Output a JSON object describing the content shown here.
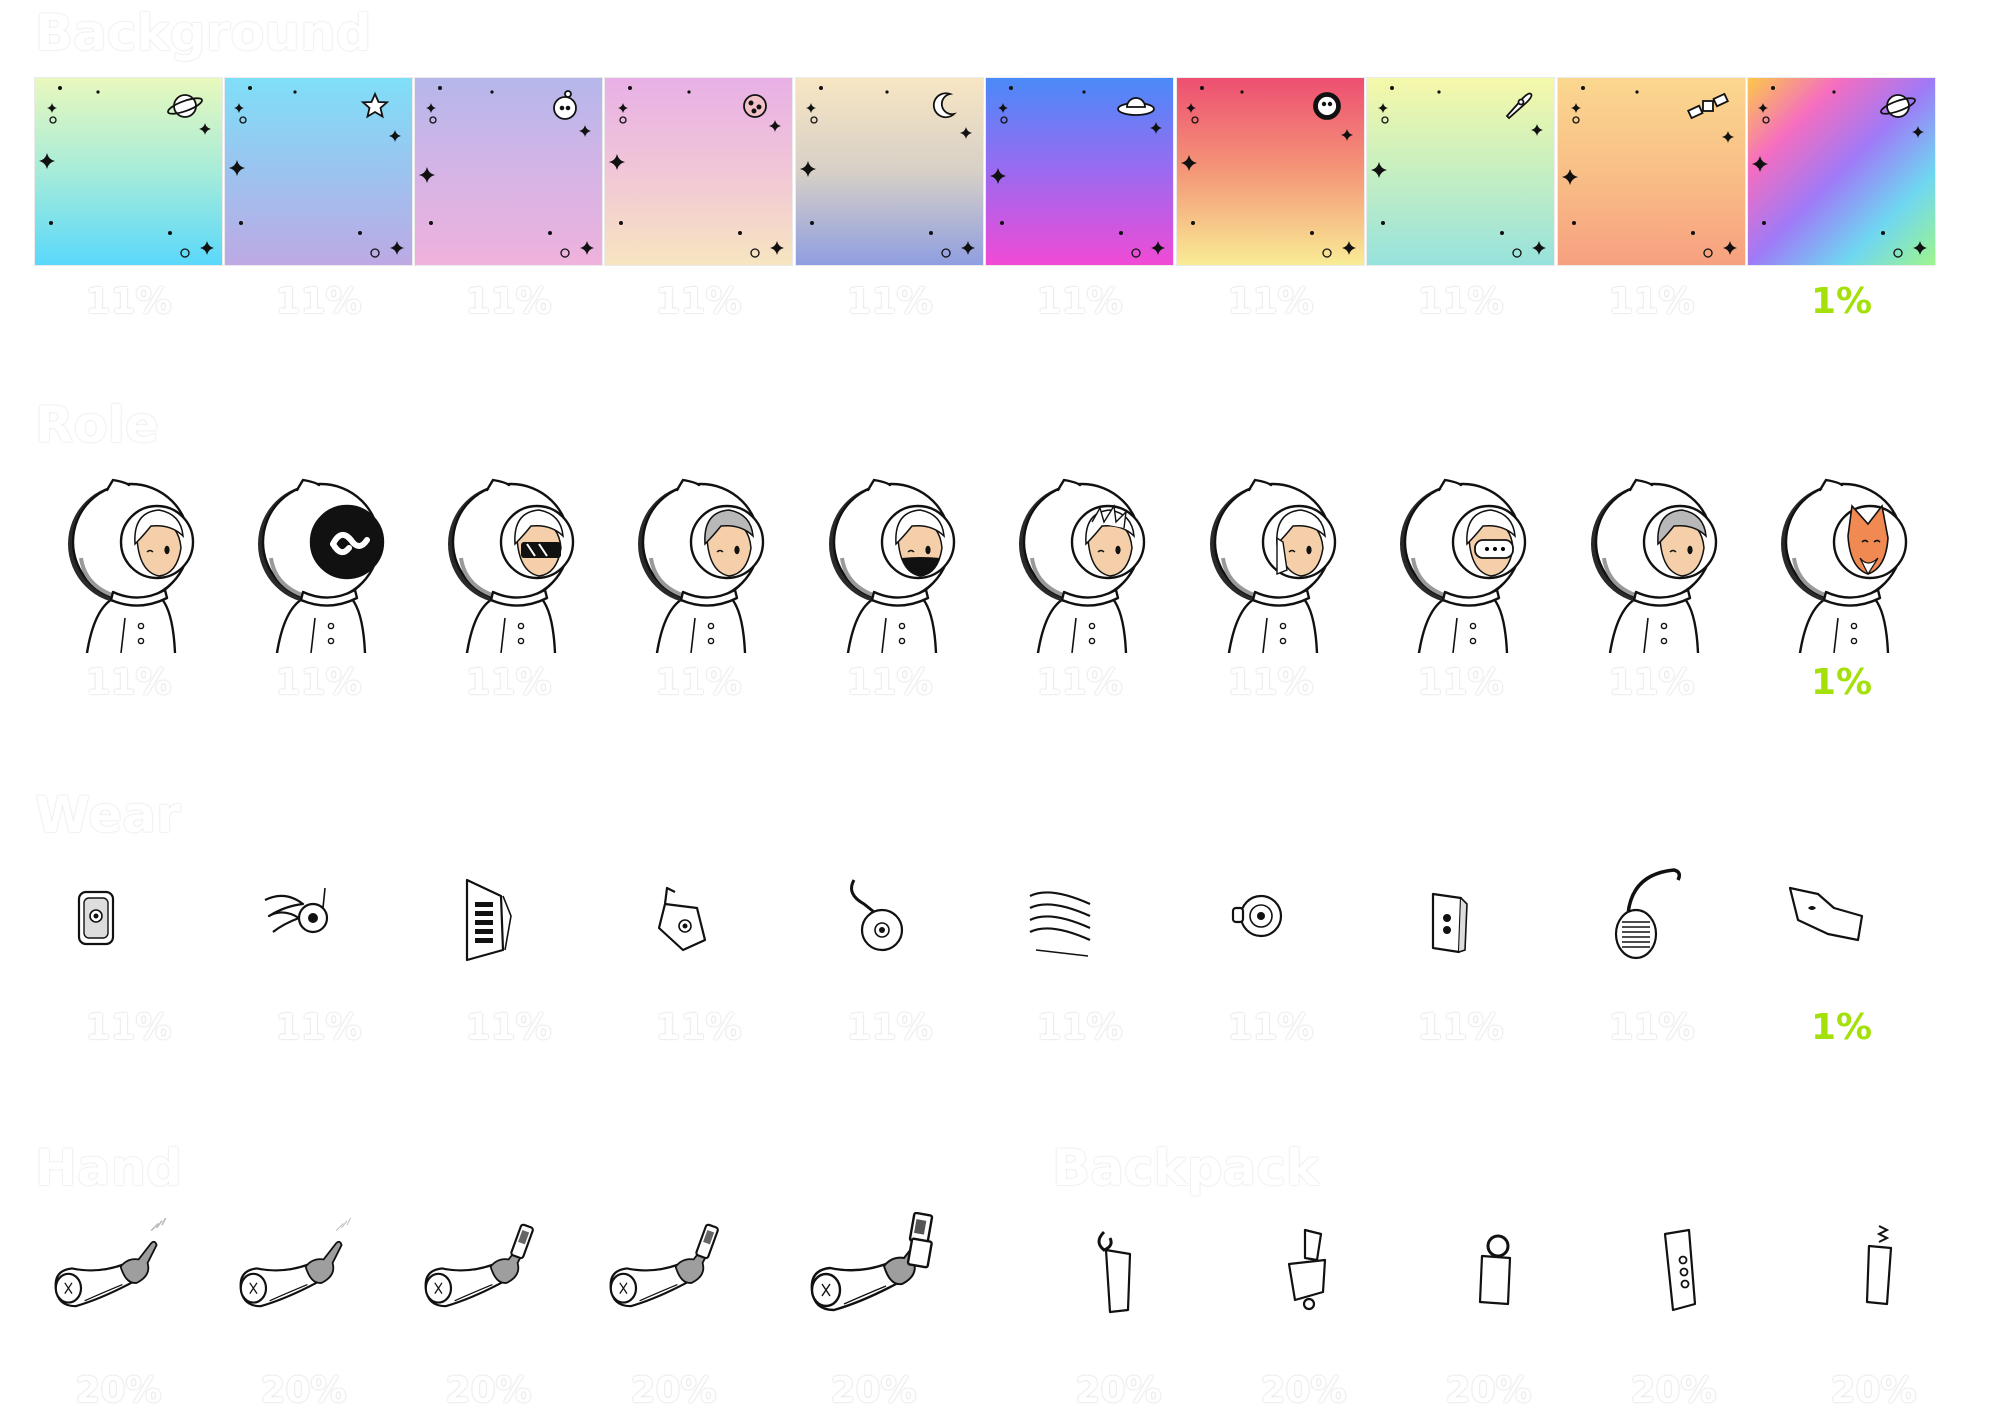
{
  "sections": {
    "background": {
      "title": "Background",
      "items": [
        {
          "name": "cyan-lime",
          "colors": [
            "#e9f8bd",
            "#a6ecd9",
            "#5ad8fb"
          ],
          "pct": "11%",
          "deco": "planet"
        },
        {
          "name": "sky-lavender",
          "colors": [
            "#7fdff8",
            "#9bc3ef",
            "#bea9e4"
          ],
          "pct": "11%",
          "deco": "star"
        },
        {
          "name": "lavender-pink",
          "colors": [
            "#b5b7eb",
            "#d5b4e6",
            "#efb2dc"
          ],
          "pct": "11%",
          "deco": "astronaut"
        },
        {
          "name": "pink-cream",
          "colors": [
            "#e8b0e6",
            "#f1c6d7",
            "#f7e5c0"
          ],
          "pct": "11%",
          "deco": "cookie-planet"
        },
        {
          "name": "cream-periwinkle",
          "colors": [
            "#f8e6c3",
            "#d7d0c7",
            "#8f9ee0"
          ],
          "pct": "11%",
          "deco": "moon"
        },
        {
          "name": "blue-magenta",
          "colors": [
            "#4a8af9",
            "#9b6af0",
            "#f14ad5"
          ],
          "pct": "11%",
          "deco": "ufo"
        },
        {
          "name": "red-yellow",
          "colors": [
            "#ee4f72",
            "#f49777",
            "#f9ec96"
          ],
          "pct": "11%",
          "deco": "sun-face"
        },
        {
          "name": "yellow-aqua",
          "colors": [
            "#f6f8a9",
            "#c6efc1",
            "#97e2dd"
          ],
          "pct": "11%",
          "deco": "rocket"
        },
        {
          "name": "peach-salmon",
          "colors": [
            "#fbd78f",
            "#f8bf86",
            "#f7a080"
          ],
          "pct": "11%",
          "deco": "satellite"
        },
        {
          "name": "rainbow",
          "colors": [
            "#fbc84b",
            "#f56dc0",
            "#9e7af7",
            "#6fd6f2",
            "#9ef58c"
          ],
          "pct": "1%",
          "deco": "planet",
          "rare": true
        }
      ]
    },
    "role": {
      "title": "Role",
      "items": [
        {
          "name": "short-hair-kid",
          "skin": "#f4cfa9",
          "visor": "plain",
          "pct": "11%"
        },
        {
          "name": "black-logo-face",
          "skin": "#111111",
          "visor": "logo",
          "pct": "11%"
        },
        {
          "name": "sunglasses",
          "skin": "#f4cfa9",
          "visor": "glasses",
          "pct": "11%"
        },
        {
          "name": "grey-hair",
          "skin": "#f4cfa9",
          "visor": "grey-hair",
          "pct": "11%"
        },
        {
          "name": "masked",
          "skin": "#f4cfa9",
          "visor": "mask",
          "pct": "11%"
        },
        {
          "name": "messy-hair",
          "skin": "#f4cfa9",
          "visor": "messy",
          "pct": "11%"
        },
        {
          "name": "long-hair",
          "skin": "#f4cfa9",
          "visor": "long",
          "pct": "11%"
        },
        {
          "name": "vr-goggles",
          "skin": "#f4cfa9",
          "visor": "goggles",
          "pct": "11%"
        },
        {
          "name": "grey-cap",
          "skin": "#f4cfa9",
          "visor": "cap",
          "pct": "11%"
        },
        {
          "name": "fox",
          "skin": "#f08a52",
          "visor": "fox",
          "pct": "1%",
          "rare": true
        }
      ]
    },
    "wear": {
      "title": "Wear",
      "items": [
        {
          "name": "speaker-box",
          "pct": "11%"
        },
        {
          "name": "winged-disc",
          "pct": "11%"
        },
        {
          "name": "vent-panel",
          "pct": "11%"
        },
        {
          "name": "tilted-pod",
          "pct": "11%"
        },
        {
          "name": "hook-disc",
          "pct": "11%"
        },
        {
          "name": "stripe-fins",
          "pct": "11%"
        },
        {
          "name": "round-earpiece",
          "pct": "11%"
        },
        {
          "name": "twin-lens-box",
          "pct": "11%"
        },
        {
          "name": "headphone",
          "pct": "11%"
        },
        {
          "name": "pop-wing",
          "pct": "1%",
          "rare": true
        }
      ]
    },
    "hand": {
      "title": "Hand",
      "items": [
        {
          "name": "pointing-sparkle",
          "pct": "20%"
        },
        {
          "name": "pointing-small",
          "pct": "20%"
        },
        {
          "name": "holding-phone",
          "pct": "20%"
        },
        {
          "name": "holding-remote",
          "pct": "20%"
        },
        {
          "name": "holding-flip-phone",
          "pct": "20%"
        }
      ]
    },
    "backpack": {
      "title": "Backpack",
      "items": [
        {
          "name": "hooked-canister",
          "pct": "20%"
        },
        {
          "name": "tilted-gadget",
          "pct": "20%"
        },
        {
          "name": "ring-tank",
          "pct": "20%"
        },
        {
          "name": "button-pack",
          "pct": "20%"
        },
        {
          "name": "spring-canister",
          "pct": "20%"
        }
      ]
    }
  }
}
